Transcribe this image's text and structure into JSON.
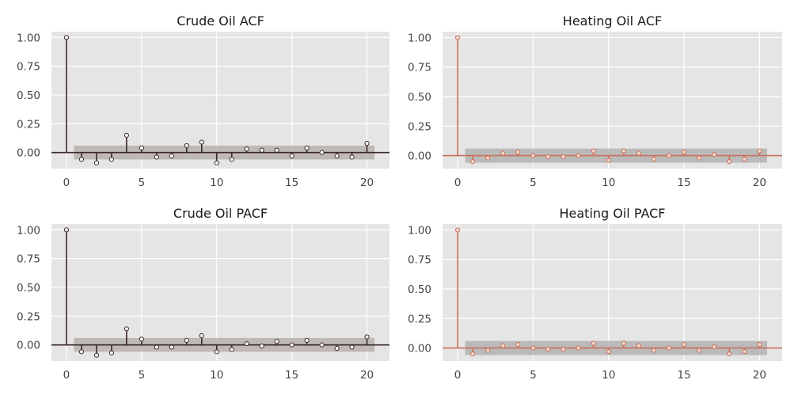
{
  "chart_data": [
    {
      "type": "stem",
      "title": "Crude Oil ACF",
      "x": [
        0,
        1,
        2,
        3,
        4,
        5,
        6,
        7,
        8,
        9,
        10,
        11,
        12,
        13,
        14,
        15,
        16,
        17,
        18,
        19,
        20
      ],
      "values": [
        1.0,
        -0.06,
        -0.09,
        -0.06,
        0.15,
        0.04,
        -0.04,
        -0.03,
        0.06,
        0.09,
        -0.09,
        -0.06,
        0.03,
        0.02,
        0.02,
        -0.03,
        0.04,
        0.0,
        -0.03,
        -0.04,
        0.08
      ],
      "confidence_band": 0.06,
      "xticks": [
        "0",
        "5",
        "10",
        "15",
        "20"
      ],
      "yticks": [
        "0.00",
        "0.25",
        "0.50",
        "0.75",
        "1.00"
      ],
      "xlim": [
        -1,
        21.5
      ],
      "ylim": [
        -0.14,
        1.05
      ],
      "color": "#3b2a26",
      "marker_fill": "#ffffff",
      "band_color": "#b9b2ad",
      "plot_bg": "#e5e5e5",
      "grid": true
    },
    {
      "type": "stem",
      "title": "Heating Oil ACF",
      "x": [
        0,
        1,
        2,
        3,
        4,
        5,
        6,
        7,
        8,
        9,
        10,
        11,
        12,
        13,
        14,
        15,
        16,
        17,
        18,
        19,
        20
      ],
      "values": [
        1.0,
        -0.05,
        -0.02,
        0.02,
        0.03,
        0.0,
        -0.01,
        -0.01,
        0.0,
        0.04,
        -0.04,
        0.04,
        0.02,
        -0.03,
        0.0,
        0.03,
        -0.02,
        0.01,
        -0.05,
        -0.03,
        0.04
      ],
      "confidence_band": 0.06,
      "xticks": [
        "0",
        "5",
        "10",
        "15",
        "20"
      ],
      "yticks": [
        "0.00",
        "0.25",
        "0.50",
        "0.75",
        "1.00"
      ],
      "xlim": [
        -1,
        21.5
      ],
      "ylim": [
        -0.11,
        1.05
      ],
      "color": "#c8715a",
      "marker_fill": "#f0d8cf",
      "band_color": "#b3b3b3",
      "plot_bg": "#e5e5e5",
      "grid": true
    },
    {
      "type": "stem",
      "title": "Crude Oil PACF",
      "x": [
        0,
        1,
        2,
        3,
        4,
        5,
        6,
        7,
        8,
        9,
        10,
        11,
        12,
        13,
        14,
        15,
        16,
        17,
        18,
        19,
        20
      ],
      "values": [
        1.0,
        -0.06,
        -0.09,
        -0.07,
        0.14,
        0.05,
        -0.02,
        -0.02,
        0.04,
        0.08,
        -0.06,
        -0.04,
        0.01,
        -0.01,
        0.03,
        0.0,
        0.04,
        0.0,
        -0.03,
        -0.02,
        0.07
      ],
      "confidence_band": 0.06,
      "xticks": [
        "0",
        "5",
        "10",
        "15",
        "20"
      ],
      "yticks": [
        "0.00",
        "0.25",
        "0.50",
        "0.75",
        "1.00"
      ],
      "xlim": [
        -1,
        21.5
      ],
      "ylim": [
        -0.14,
        1.05
      ],
      "color": "#3b2a26",
      "marker_fill": "#ffffff",
      "band_color": "#b9b2ad",
      "plot_bg": "#e5e5e5",
      "grid": true
    },
    {
      "type": "stem",
      "title": "Heating Oil PACF",
      "x": [
        0,
        1,
        2,
        3,
        4,
        5,
        6,
        7,
        8,
        9,
        10,
        11,
        12,
        13,
        14,
        15,
        16,
        17,
        18,
        19,
        20
      ],
      "values": [
        1.0,
        -0.05,
        -0.02,
        0.02,
        0.03,
        0.0,
        -0.01,
        -0.01,
        0.0,
        0.04,
        -0.03,
        0.04,
        0.02,
        -0.02,
        0.0,
        0.03,
        -0.02,
        0.01,
        -0.05,
        -0.03,
        0.03
      ],
      "confidence_band": 0.06,
      "xticks": [
        "0",
        "5",
        "10",
        "15",
        "20"
      ],
      "yticks": [
        "0.00",
        "0.25",
        "0.50",
        "0.75",
        "1.00"
      ],
      "xlim": [
        -1,
        21.5
      ],
      "ylim": [
        -0.11,
        1.05
      ],
      "color": "#c8715a",
      "marker_fill": "#f0d8cf",
      "band_color": "#b3b3b3",
      "plot_bg": "#e5e5e5",
      "grid": true
    }
  ]
}
